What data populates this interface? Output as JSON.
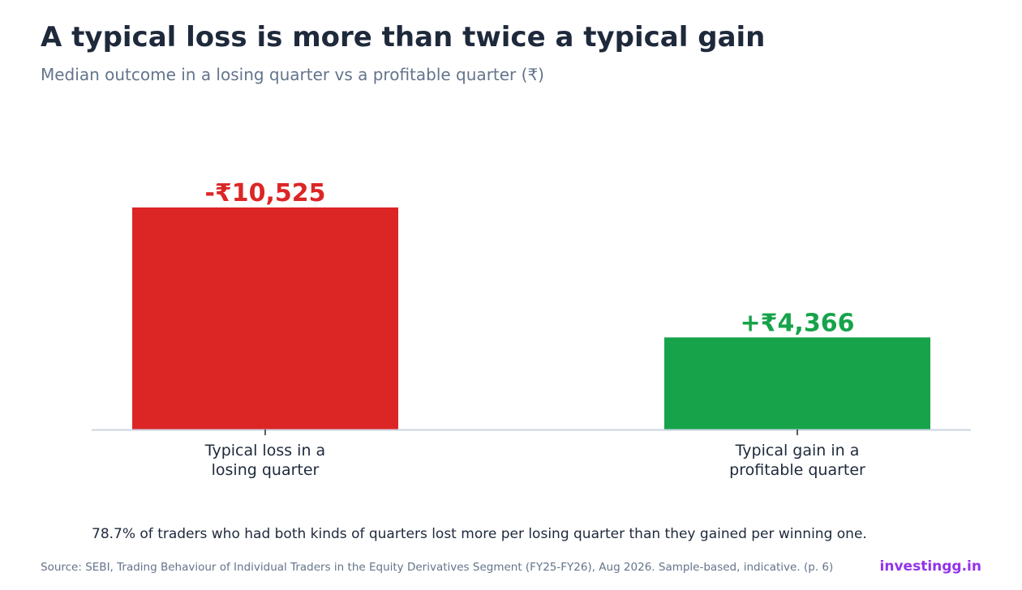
{
  "header": {
    "title": "A typical loss is more than twice a typical gain",
    "subtitle": "Median outcome in a losing quarter vs a profitable quarter (₹)"
  },
  "chart_data": {
    "type": "bar",
    "categories": [
      "Typical loss in a losing quarter",
      "Typical gain in a profitable quarter"
    ],
    "category_label_lines": [
      [
        "Typical loss in a",
        "losing quarter"
      ],
      [
        "Typical gain in a",
        "profitable quarter"
      ]
    ],
    "values": [
      10525,
      4366
    ],
    "signed_values": [
      -10525,
      4366
    ],
    "value_labels": [
      "-₹10,525",
      "+₹4,366"
    ],
    "colors": [
      "#dc2626",
      "#16a34a"
    ],
    "ylim": [
      0,
      10525
    ],
    "grid": false,
    "xlabel": "",
    "ylabel": ""
  },
  "footer": {
    "note": "78.7% of traders who had both kinds of quarters lost more per losing quarter than they gained per winning one.",
    "source": "Source: SEBI, Trading Behaviour of Individual Traders in the Equity Derivatives Segment (FY25-FY26), Aug 2026. Sample-based, indicative. (p. 6)",
    "brand": "investingg.in",
    "brand_color": "#9333ea"
  },
  "colors": {
    "title": "#1e293b",
    "subtitle": "#64748b",
    "axis": "#cbd5e1"
  }
}
